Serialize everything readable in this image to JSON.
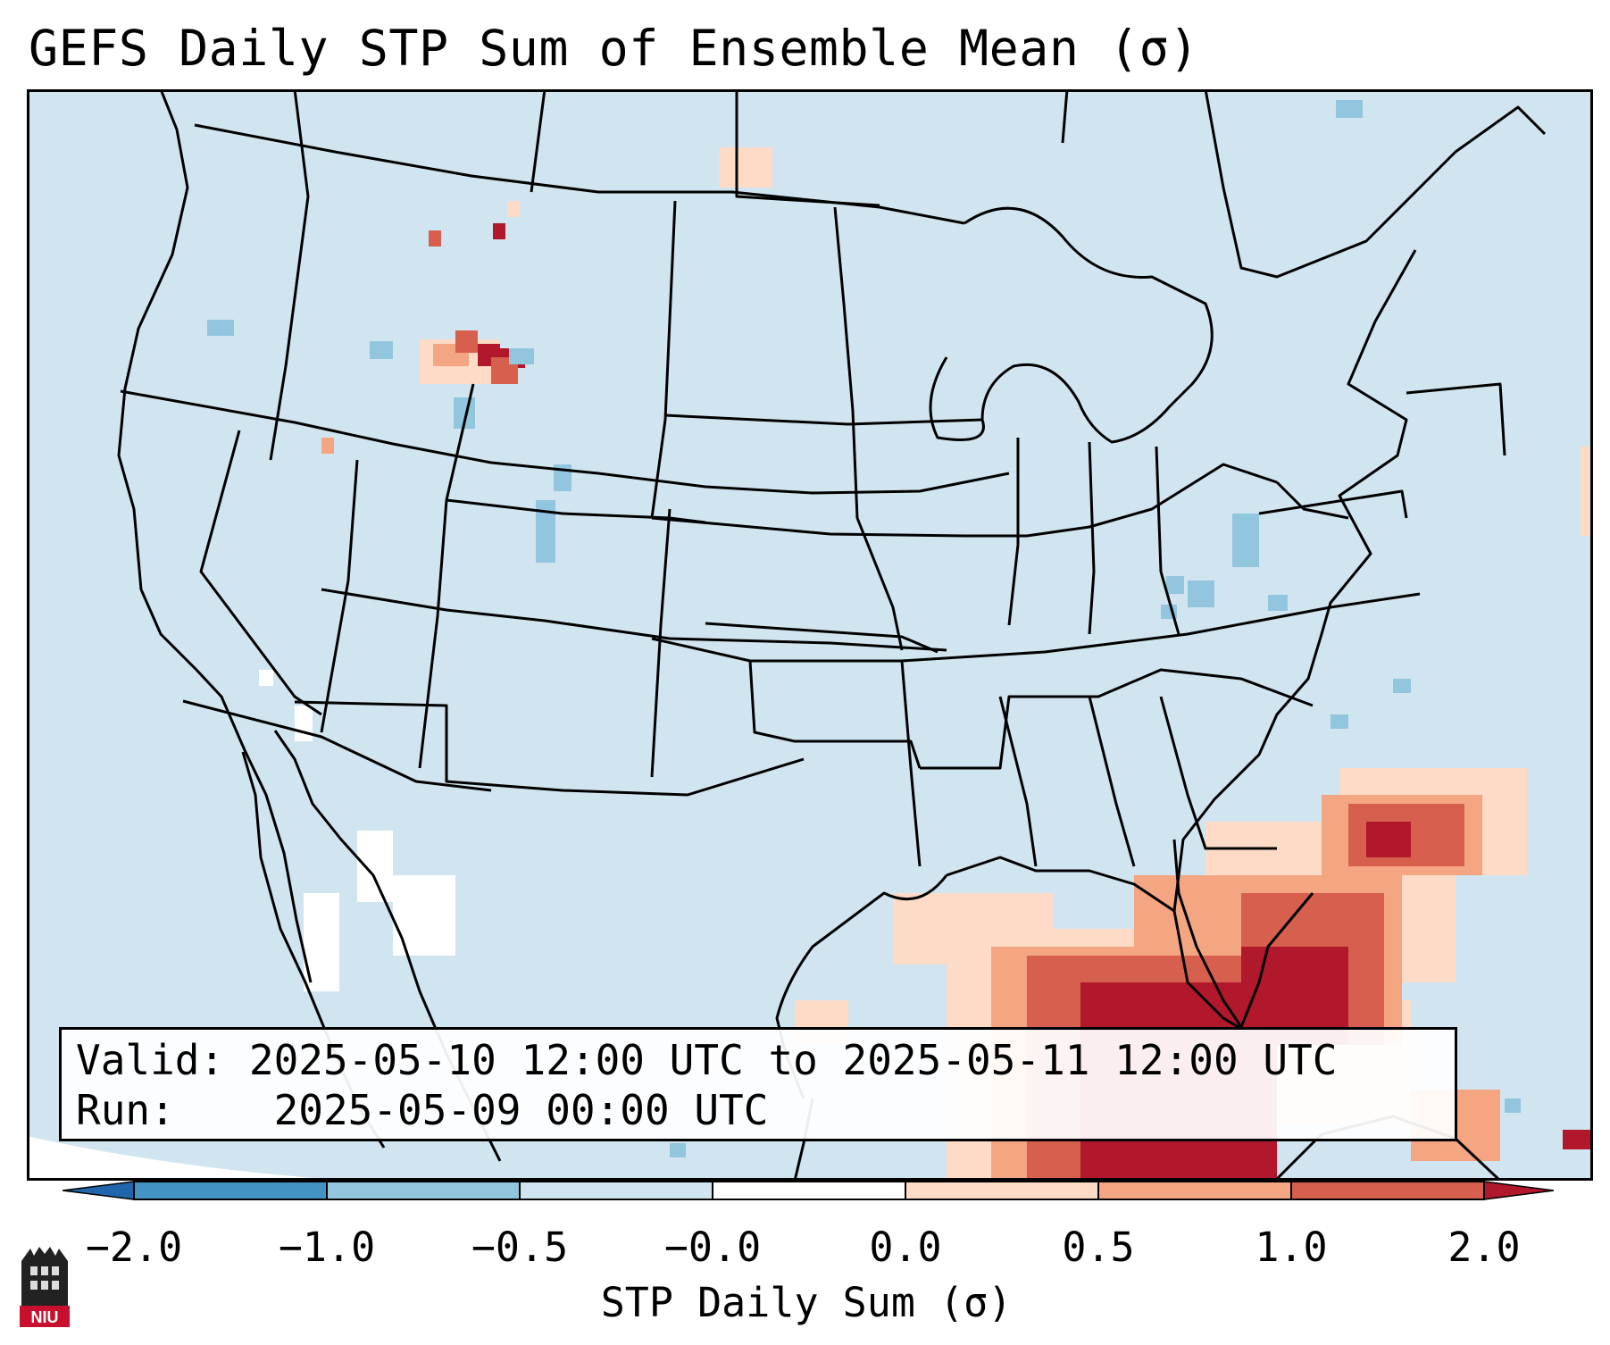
{
  "title": "GEFS Daily STP Sum of Ensemble Mean (σ)",
  "info": {
    "valid_label": "Valid:",
    "valid_value": "2025-05-10 12:00 UTC to 2025-05-11 12:00 UTC",
    "run_label": "Run:",
    "run_value": "2025-05-09 00:00 UTC"
  },
  "colorbar": {
    "label": "STP Daily Sum (σ)",
    "ticks": [
      "−2.0",
      "−1.0",
      "−0.5",
      "−0.0",
      "0.0",
      "0.5",
      "1.0",
      "2.0"
    ],
    "colors": {
      "under": "#2166ac",
      "bins": [
        "#4393c3",
        "#92c5de",
        "#d1e5f0",
        "#ffffff",
        "#fddbc7",
        "#f4a582",
        "#d6604d"
      ],
      "over": "#b2182b"
    }
  },
  "logo": {
    "text": "NIU",
    "bg": "#c8102e"
  },
  "colors": {
    "ocean": "#d1e5f0",
    "outline": "#000000"
  }
}
